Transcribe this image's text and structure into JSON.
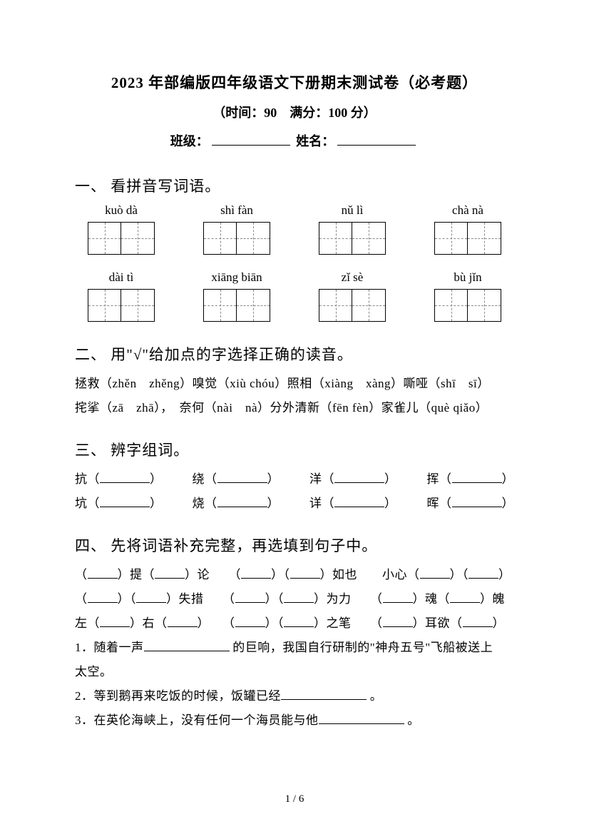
{
  "header": {
    "title": "2023 年部编版四年级语文下册期末测试卷（必考题）",
    "subtitle": "（时间：90　满分：100 分）",
    "class_label": "班级：",
    "name_label": "姓名："
  },
  "section1": {
    "title": "一、 看拼音写词语。",
    "items": [
      {
        "pinyin": "kuò dà",
        "cells": 2
      },
      {
        "pinyin": "shì fàn",
        "cells": 2
      },
      {
        "pinyin": "nǔ lì",
        "cells": 2
      },
      {
        "pinyin": "chà nà",
        "cells": 2
      },
      {
        "pinyin": "dài tì",
        "cells": 2
      },
      {
        "pinyin": "xiāng biān",
        "cells": 2
      },
      {
        "pinyin": "zǐ sè",
        "cells": 2
      },
      {
        "pinyin": "bù jǐn",
        "cells": 2
      }
    ]
  },
  "section2": {
    "title": "二、 用\"√\"给加点的字选择正确的读音。",
    "line1_parts": [
      "拯救（zhěn　zhěng）嗅觉（xiù chóu）照相（xiàng　xàng）嘶哑（shī　sī）"
    ],
    "line2_parts": [
      "挓挲（zā　zhā），　奈何（nài　nà）分外清新（fēn fèn）家雀儿（què qiǎo）"
    ]
  },
  "section3": {
    "title": "三、 辨字组词。",
    "pairs": [
      [
        {
          "char": "抗"
        },
        {
          "char": "绕"
        },
        {
          "char": "洋"
        },
        {
          "char": "挥"
        }
      ],
      [
        {
          "char": "坑"
        },
        {
          "char": "烧"
        },
        {
          "char": "详"
        },
        {
          "char": "晖"
        }
      ]
    ]
  },
  "section4": {
    "title": "四、 先将词语补充完整，再选填到句子中。",
    "row1": [
      "（",
      "）提（",
      "）论　　（",
      "）（",
      "）如也　　小心（",
      "）（",
      "）"
    ],
    "row2": [
      "（",
      "）（",
      "）失措　　（",
      "）（",
      "）为力　　（",
      "）魂（",
      "）魄"
    ],
    "row3": [
      "左（",
      "）右（",
      "）　　（",
      "）（",
      "）之笔　　（",
      "）耳欲（",
      "）"
    ],
    "q1_a": "1．随着一声",
    "q1_b": " 的巨响，我国自行研制的\"神舟五号\"飞船被送上",
    "q1_c": "太空。",
    "q2_a": "2．等到鹅再来吃饭的时候，饭罐已经",
    "q2_b": " 。",
    "q3_a": "3．在英伦海峡上，没有任何一个海员能与他",
    "q3_b": " 。"
  },
  "page_number": "1 / 6",
  "colors": {
    "text": "#000000",
    "background": "#ffffff",
    "dash": "#888888"
  }
}
